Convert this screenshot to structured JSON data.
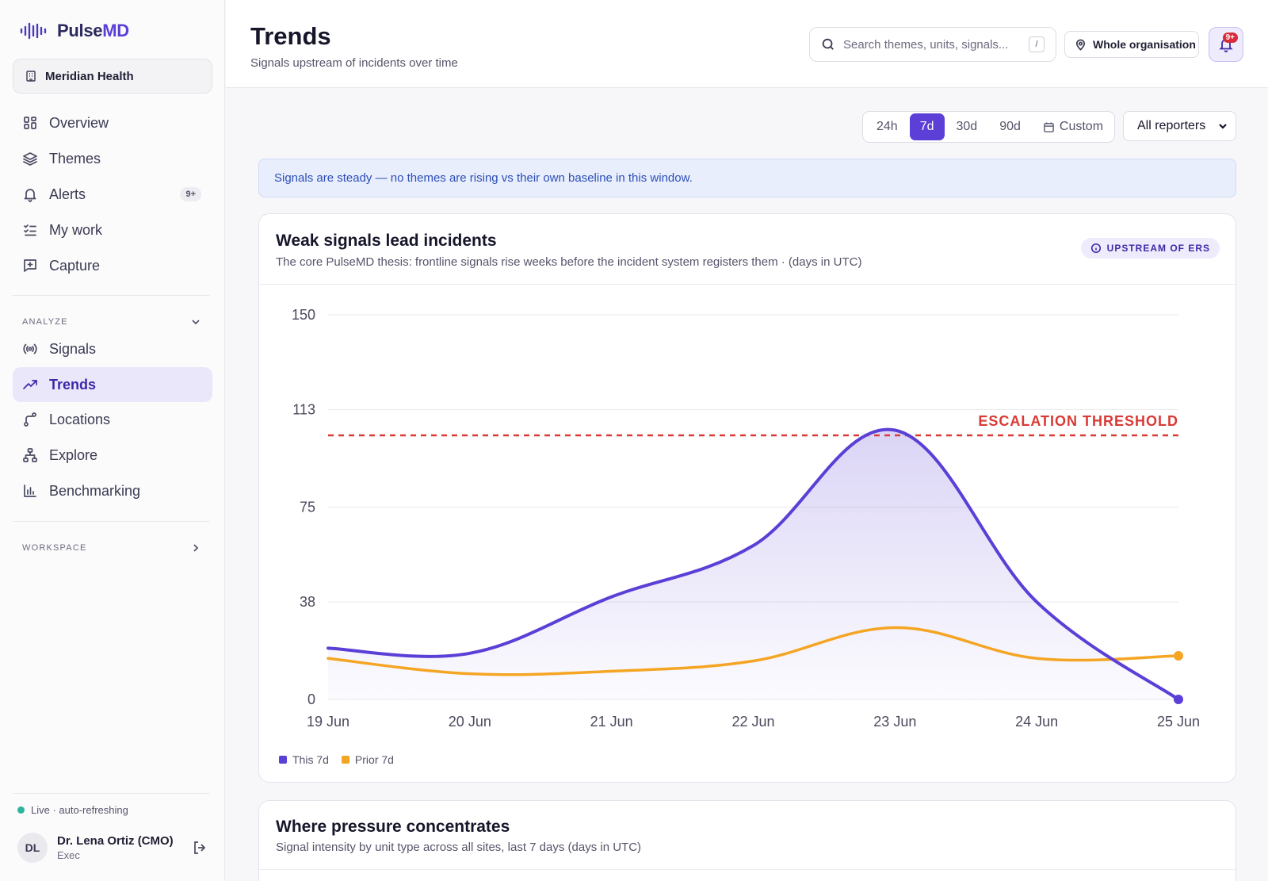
{
  "app": {
    "name_part1": "Pulse",
    "name_part2": "MD",
    "org": "Meridian Health"
  },
  "sidebar": {
    "nav": [
      {
        "label": "Overview",
        "icon": "grid-icon"
      },
      {
        "label": "Themes",
        "icon": "layers-icon"
      },
      {
        "label": "Alerts",
        "icon": "bell-icon",
        "badge": "9+"
      },
      {
        "label": "My work",
        "icon": "checklist-icon"
      },
      {
        "label": "Capture",
        "icon": "message-plus-icon"
      }
    ],
    "analyze_label": "ANALYZE",
    "analyze": [
      {
        "label": "Signals",
        "icon": "radio-icon"
      },
      {
        "label": "Trends",
        "icon": "trend-up-icon",
        "active": true
      },
      {
        "label": "Locations",
        "icon": "route-icon"
      },
      {
        "label": "Explore",
        "icon": "hierarchy-icon"
      },
      {
        "label": "Benchmarking",
        "icon": "bar-chart-icon"
      }
    ],
    "workspace_label": "WORKSPACE",
    "live_status": "Live · auto-refreshing",
    "user": {
      "initials": "DL",
      "name": "Dr. Lena Ortiz (CMO)",
      "role": "Exec"
    }
  },
  "header": {
    "title": "Trends",
    "subtitle": "Signals upstream of incidents over time",
    "search_placeholder": "Search themes, units, signals...",
    "search_shortcut": "/",
    "location_filter": "Whole organisation",
    "notification_badge": "9+"
  },
  "toolbar": {
    "ranges": [
      "24h",
      "7d",
      "30d",
      "90d"
    ],
    "active_range": "7d",
    "custom_label": "Custom",
    "reporters": "All reporters"
  },
  "banner": "Signals are steady — no themes are rising vs their own baseline in this window.",
  "cards": {
    "weak_signals": {
      "title": "Weak signals lead incidents",
      "subtitle": "The core PulseMD thesis: frontline signals rise weeks before the incident system registers them · (days in UTC)",
      "pill": "UPSTREAM OF ERS"
    },
    "pressure": {
      "title": "Where pressure concentrates",
      "subtitle": "Signal intensity by unit type across all sites, last 7 days (days in UTC)"
    }
  },
  "colors": {
    "accent": "#5b3fd6",
    "prior": "#f5a524",
    "threshold": "#d93a35"
  },
  "chart_data": {
    "type": "area",
    "categories": [
      "19 Jun",
      "20 Jun",
      "21 Jun",
      "22 Jun",
      "23 Jun",
      "24 Jun",
      "25 Jun"
    ],
    "yticks": [
      0,
      38,
      75,
      113,
      150
    ],
    "ylim": [
      0,
      150
    ],
    "series": [
      {
        "name": "This 7d",
        "color": "#5b3fd6",
        "values": [
          20,
          18,
          40,
          60,
          105,
          38,
          0
        ]
      },
      {
        "name": "Prior 7d",
        "color": "#f5a524",
        "values": [
          16,
          10,
          11,
          15,
          28,
          16,
          17
        ]
      }
    ],
    "threshold": {
      "label": "ESCALATION THRESHOLD",
      "value": 103
    },
    "legend_position": "bottom-left"
  }
}
